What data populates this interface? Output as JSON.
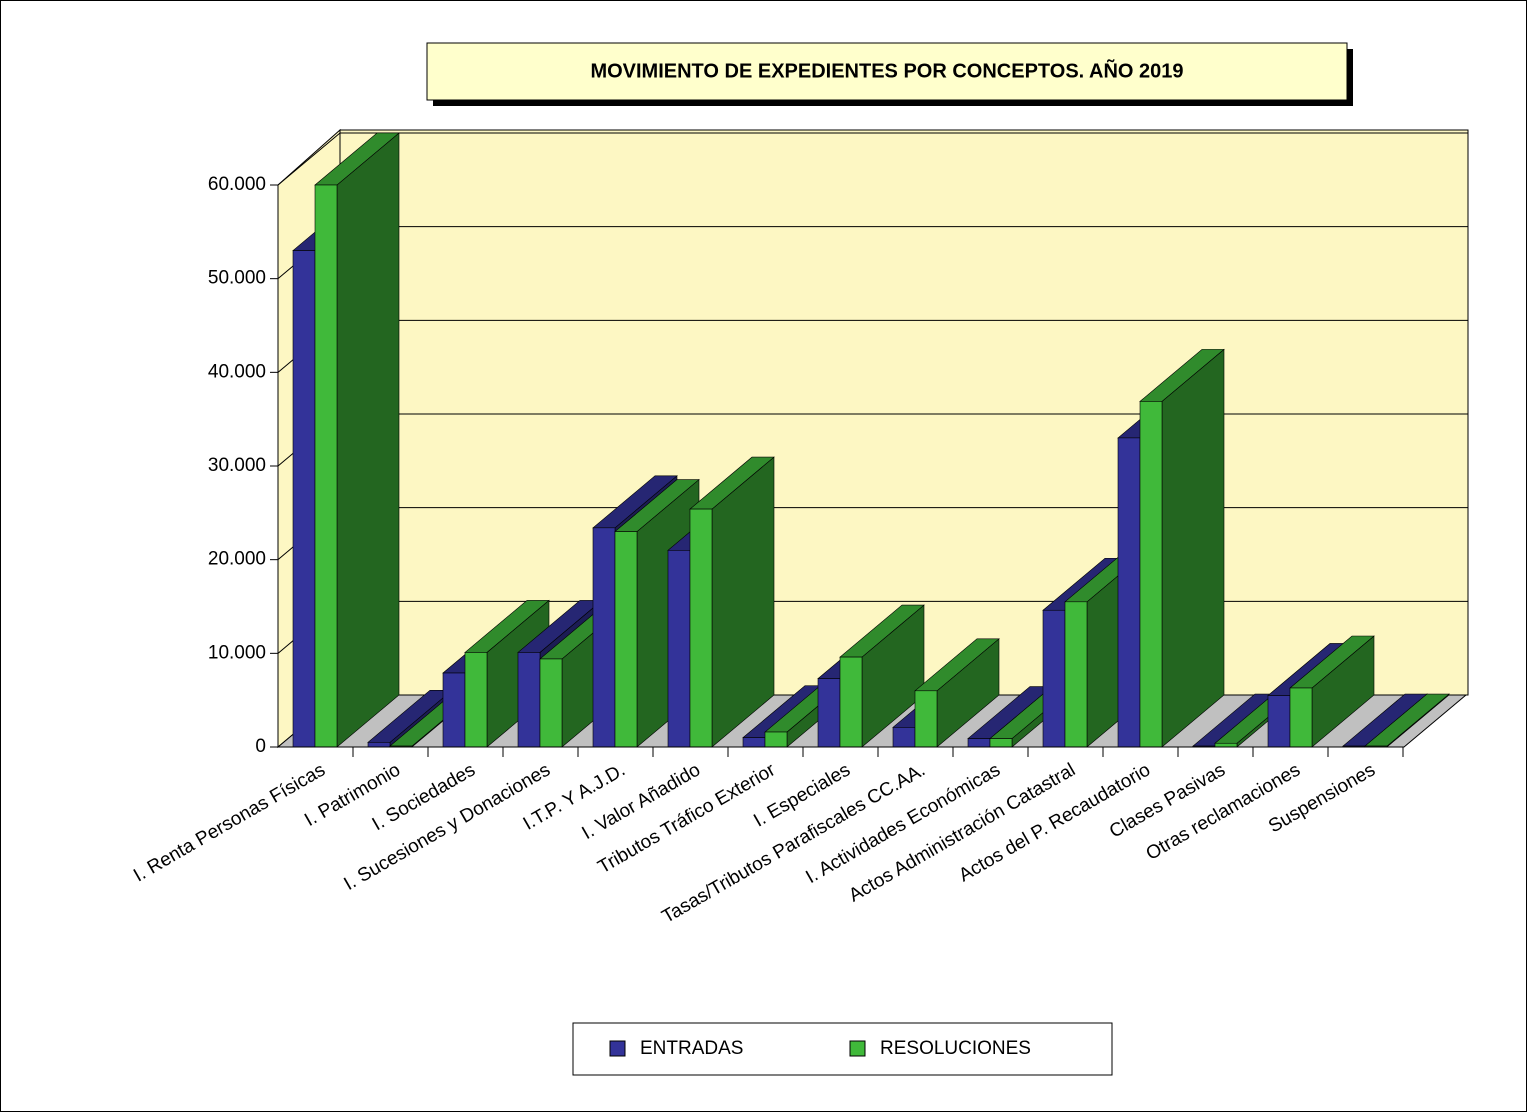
{
  "chart_data": {
    "type": "bar3d",
    "title": "MOVIMIENTO DE EXPEDIENTES POR CONCEPTOS. AÑO 2019",
    "categories": [
      "I. Renta Personas Físicas",
      "I.  Patrimonio",
      "I.  Sociedades",
      "I.  Sucesiones y Donaciones",
      "I.T.P. Y A.J.D.",
      "I.  Valor Añadido",
      "Tributos Tráfico Exterior",
      "I. Especiales",
      "Tasas/Tributos Parafiscales CC.AA.",
      "I.  Actividades Económicas",
      "Actos  Administración Catastral",
      "Actos del P. Recaudatorio",
      "Clases Pasivas",
      "Otras reclamaciones",
      "Suspensiones"
    ],
    "series": [
      {
        "name": "ENTRADAS",
        "color": "#333399",
        "values": [
          53000,
          500,
          7900,
          10100,
          23400,
          21000,
          1000,
          7300,
          2100,
          900,
          14600,
          33000,
          100,
          5500,
          100
        ]
      },
      {
        "name": "RESOLUCIONES",
        "color": "#40b93a",
        "values": [
          60000,
          100,
          10100,
          9400,
          23000,
          25400,
          1600,
          9600,
          6000,
          900,
          15500,
          36900,
          400,
          6300,
          100
        ]
      }
    ],
    "ylim": [
      0,
      60000
    ],
    "yticks": [
      0,
      {
        "value": 10000,
        "label": "10.000"
      },
      {
        "value": 20000,
        "label": "20.000"
      },
      {
        "value": 30000,
        "label": "30.000"
      },
      {
        "value": 40000,
        "label": "40.000"
      },
      {
        "value": 50000,
        "label": "50.000"
      },
      {
        "value": 60000,
        "label": "60.000"
      }
    ],
    "grid": true
  }
}
